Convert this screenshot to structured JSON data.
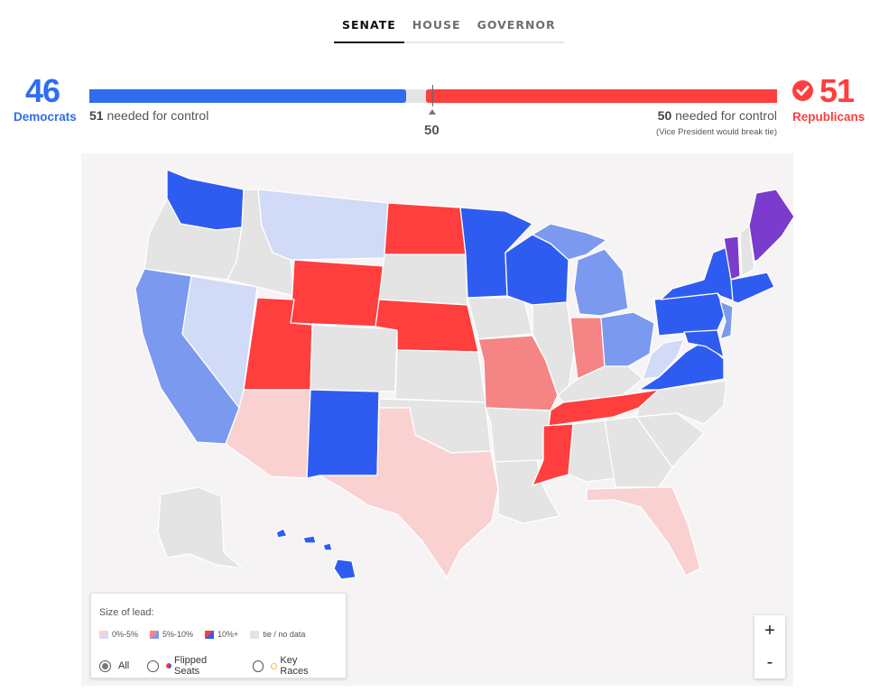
{
  "tabs": [
    {
      "label": "SENATE",
      "active": true
    },
    {
      "label": "HOUSE",
      "active": false
    },
    {
      "label": "GOVERNOR",
      "active": false
    }
  ],
  "balance": {
    "dem_count": "46",
    "dem_label": "Democrats",
    "rep_count": "51",
    "rep_label": "Republicans",
    "dem_needed": "51",
    "rep_needed": "50",
    "needed_text": "needed for control",
    "vp_note": "(Vice President would break tie)",
    "midpoint": "50",
    "dem_seats": 46,
    "rep_seats": 51,
    "total_seats": 100
  },
  "colors": {
    "dem_strong": "#2f5cf0",
    "dem_mid": "#7b99ee",
    "dem_light": "#d1daf6",
    "rep_strong": "#ff3e3e",
    "rep_mid": "#f58585",
    "rep_light": "#f9d1d1",
    "independent": "#7b3bcc",
    "no_data": "#e4e4e4"
  },
  "legend": {
    "title": "Size of lead:",
    "items": [
      "0%-5%",
      "5%-10%",
      "10%+",
      "tie / no data"
    ],
    "filters": [
      {
        "label": "All",
        "selected": true
      },
      {
        "label": "Flipped Seats",
        "selected": false
      },
      {
        "label": "Key Races",
        "selected": false
      }
    ]
  },
  "zoom": {
    "in": "+",
    "out": "-"
  }
}
